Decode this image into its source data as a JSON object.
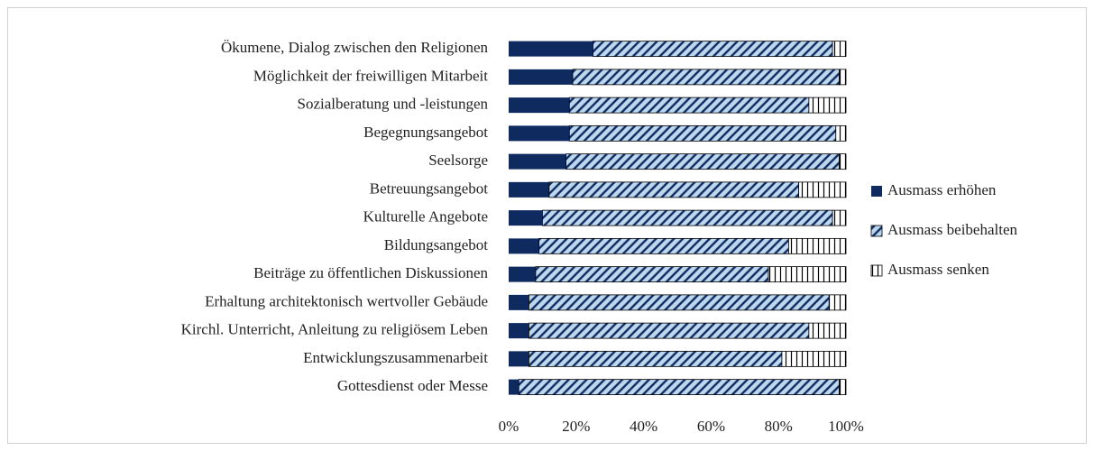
{
  "chart_data": {
    "type": "stacked-bar",
    "orientation": "horizontal",
    "categories": [
      "Ökumene, Dialog zwischen den Religionen",
      "Möglichkeit der freiwilligen Mitarbeit",
      "Sozialberatung und -leistungen",
      "Begegnungsangebot",
      "Seelsorge",
      "Betreuungsangebot",
      "Kulturelle Angebote",
      "Bildungsangebot",
      "Beiträge zu öffentlichen Diskussionen",
      "Erhaltung architektonisch wertvoller Gebäude",
      "Kirchl. Unterricht, Anleitung zu religiösem Leben",
      "Entwicklungszusammenarbeit",
      "Gottesdienst oder Messe"
    ],
    "series": [
      {
        "name": "Ausmass erhöhen",
        "color": "#0e2a5f",
        "values": [
          25,
          19,
          18,
          18,
          17,
          12,
          10,
          9,
          8,
          6,
          6,
          6,
          3
        ]
      },
      {
        "name": "Ausmass beibehalten",
        "color": "#bdd7ee",
        "values": [
          71,
          79,
          71,
          79,
          81,
          74,
          86,
          74,
          69,
          89,
          83,
          75,
          95
        ]
      },
      {
        "name": "Ausmass senken",
        "color": "#ffffff",
        "values": [
          4,
          2,
          11,
          3,
          2,
          14,
          4,
          17,
          23,
          5,
          11,
          19,
          2
        ]
      }
    ],
    "xlim": [
      0,
      100
    ],
    "xticks": [
      {
        "value": 0,
        "label": "0%"
      },
      {
        "value": 20,
        "label": "20%"
      },
      {
        "value": 40,
        "label": "40%"
      },
      {
        "value": 60,
        "label": "60%"
      },
      {
        "value": 80,
        "label": "80%"
      },
      {
        "value": 100,
        "label": "100%"
      }
    ],
    "grid": false,
    "legend": "right"
  }
}
